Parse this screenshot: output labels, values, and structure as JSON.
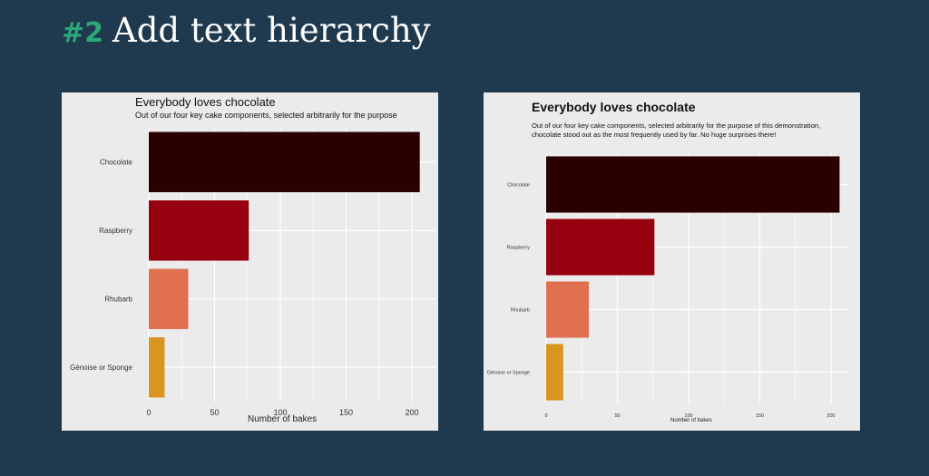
{
  "slide": {
    "number": "#2",
    "title": "Add text hierarchy"
  },
  "chart_data": [
    {
      "type": "bar",
      "orientation": "horizontal",
      "title": "Everybody loves chocolate",
      "subtitle": "Out of our four key cake components, selected arbitrarily for the purpose",
      "categories": [
        "Chocolate",
        "Raspberry",
        "Rhubarb",
        "Génoise or Sponge"
      ],
      "values": [
        206,
        76,
        30,
        12
      ],
      "colors": [
        "#2a0000",
        "#96000f",
        "#e07050",
        "#d9961e"
      ],
      "xlabel": "Number of bakes",
      "ylabel": "",
      "xlim": [
        0,
        210
      ],
      "x_ticks": [
        0,
        50,
        100,
        150,
        200
      ],
      "x_tick_labels": [
        "0",
        "50",
        "100",
        "150",
        "200"
      ],
      "grid": true
    },
    {
      "type": "bar",
      "orientation": "horizontal",
      "title": "Everybody loves chocolate",
      "subtitle": "Out of our four key cake components, selected arbitrarily for the purpose of this demonstration, chocolate stood out as the most frequently used by far. No huge surprises there!",
      "categories": [
        "Chocolate",
        "Raspberry",
        "Rhubarb",
        "Génoise or Sponge"
      ],
      "values": [
        206,
        76,
        30,
        12
      ],
      "colors": [
        "#2a0000",
        "#96000f",
        "#e07050",
        "#d9961e"
      ],
      "xlabel": "Number of bakes",
      "ylabel": "",
      "xlim": [
        0,
        210
      ],
      "x_ticks": [
        0,
        50,
        100,
        150,
        200
      ],
      "x_tick_labels": [
        "0",
        "50",
        "100",
        "150",
        "200"
      ],
      "grid": true
    }
  ]
}
